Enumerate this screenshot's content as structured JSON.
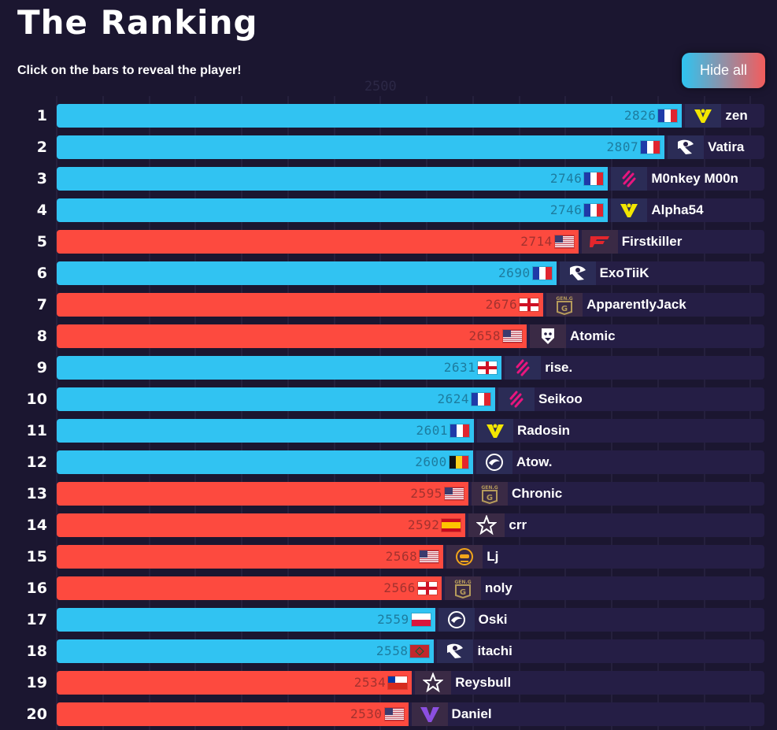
{
  "header": {
    "title": "The Ranking",
    "subtitle": "Click on the bars to reveal the player!",
    "hide_all_label": "Hide all"
  },
  "colors": {
    "blue": "#31c3f2",
    "red": "#fd4a3f",
    "background": "#1b1630",
    "track": "#251e45"
  },
  "chart_data": {
    "type": "bar",
    "orientation": "horizontal",
    "title": "The Ranking",
    "xlabel": "",
    "ylabel": "",
    "xlim": [
      2150,
      2915
    ],
    "ticks": [
      2500
    ],
    "grid": true,
    "series_colors": {
      "blue": "blue team side",
      "red": "orange team side"
    },
    "categories": [
      "1",
      "2",
      "3",
      "4",
      "5",
      "6",
      "7",
      "8",
      "9",
      "10",
      "11",
      "12",
      "13",
      "14",
      "15",
      "16",
      "17",
      "18",
      "19",
      "20"
    ],
    "players": [
      {
        "rank": 1,
        "name": "zen",
        "value": 2826,
        "color": "blue",
        "flag": "fr",
        "team": "vitality"
      },
      {
        "rank": 2,
        "name": "Vatira",
        "value": 2807,
        "color": "blue",
        "flag": "fr",
        "team": "karmine"
      },
      {
        "rank": 3,
        "name": "M0nkey M00n",
        "value": 2746,
        "color": "blue",
        "flag": "fr",
        "team": "bds"
      },
      {
        "rank": 4,
        "name": "Alpha54",
        "value": 2746,
        "color": "blue",
        "flag": "fr",
        "team": "vitality"
      },
      {
        "rank": 5,
        "name": "Firstkiller",
        "value": 2714,
        "color": "red",
        "flag": "us",
        "team": "faze"
      },
      {
        "rank": 6,
        "name": "ExoTiiK",
        "value": 2690,
        "color": "blue",
        "flag": "fr",
        "team": "karmine"
      },
      {
        "rank": 7,
        "name": "ApparentlyJack",
        "value": 2676,
        "color": "red",
        "flag": "en",
        "team": "geng"
      },
      {
        "rank": 8,
        "name": "Atomic",
        "value": 2658,
        "color": "red",
        "flag": "us",
        "team": "g2"
      },
      {
        "rank": 9,
        "name": "rise.",
        "value": 2631,
        "color": "blue",
        "flag": "en",
        "team": "bds"
      },
      {
        "rank": 10,
        "name": "Seikoo",
        "value": 2624,
        "color": "blue",
        "flag": "fr",
        "team": "bds"
      },
      {
        "rank": 11,
        "name": "Radosin",
        "value": 2601,
        "color": "blue",
        "flag": "fr",
        "team": "vitality"
      },
      {
        "rank": 12,
        "name": "Atow.",
        "value": 2600,
        "color": "blue",
        "flag": "be",
        "team": "liquid"
      },
      {
        "rank": 13,
        "name": "Chronic",
        "value": 2595,
        "color": "red",
        "flag": "us",
        "team": "geng"
      },
      {
        "rank": 14,
        "name": "crr",
        "value": 2592,
        "color": "red",
        "flag": "es",
        "team": "star"
      },
      {
        "rank": 15,
        "name": "Lj",
        "value": 2568,
        "color": "red",
        "flag": "us",
        "team": "spacestation"
      },
      {
        "rank": 16,
        "name": "noly",
        "value": 2566,
        "color": "red",
        "flag": "en",
        "team": "geng"
      },
      {
        "rank": 17,
        "name": "Oski",
        "value": 2559,
        "color": "blue",
        "flag": "pl",
        "team": "liquid"
      },
      {
        "rank": 18,
        "name": "itachi",
        "value": 2558,
        "color": "blue",
        "flag": "ma",
        "team": "karmine"
      },
      {
        "rank": 19,
        "name": "Reysbull",
        "value": 2534,
        "color": "red",
        "flag": "cl",
        "team": "star"
      },
      {
        "rank": 20,
        "name": "Daniel",
        "value": 2530,
        "color": "red",
        "flag": "us",
        "team": "version1"
      }
    ]
  }
}
